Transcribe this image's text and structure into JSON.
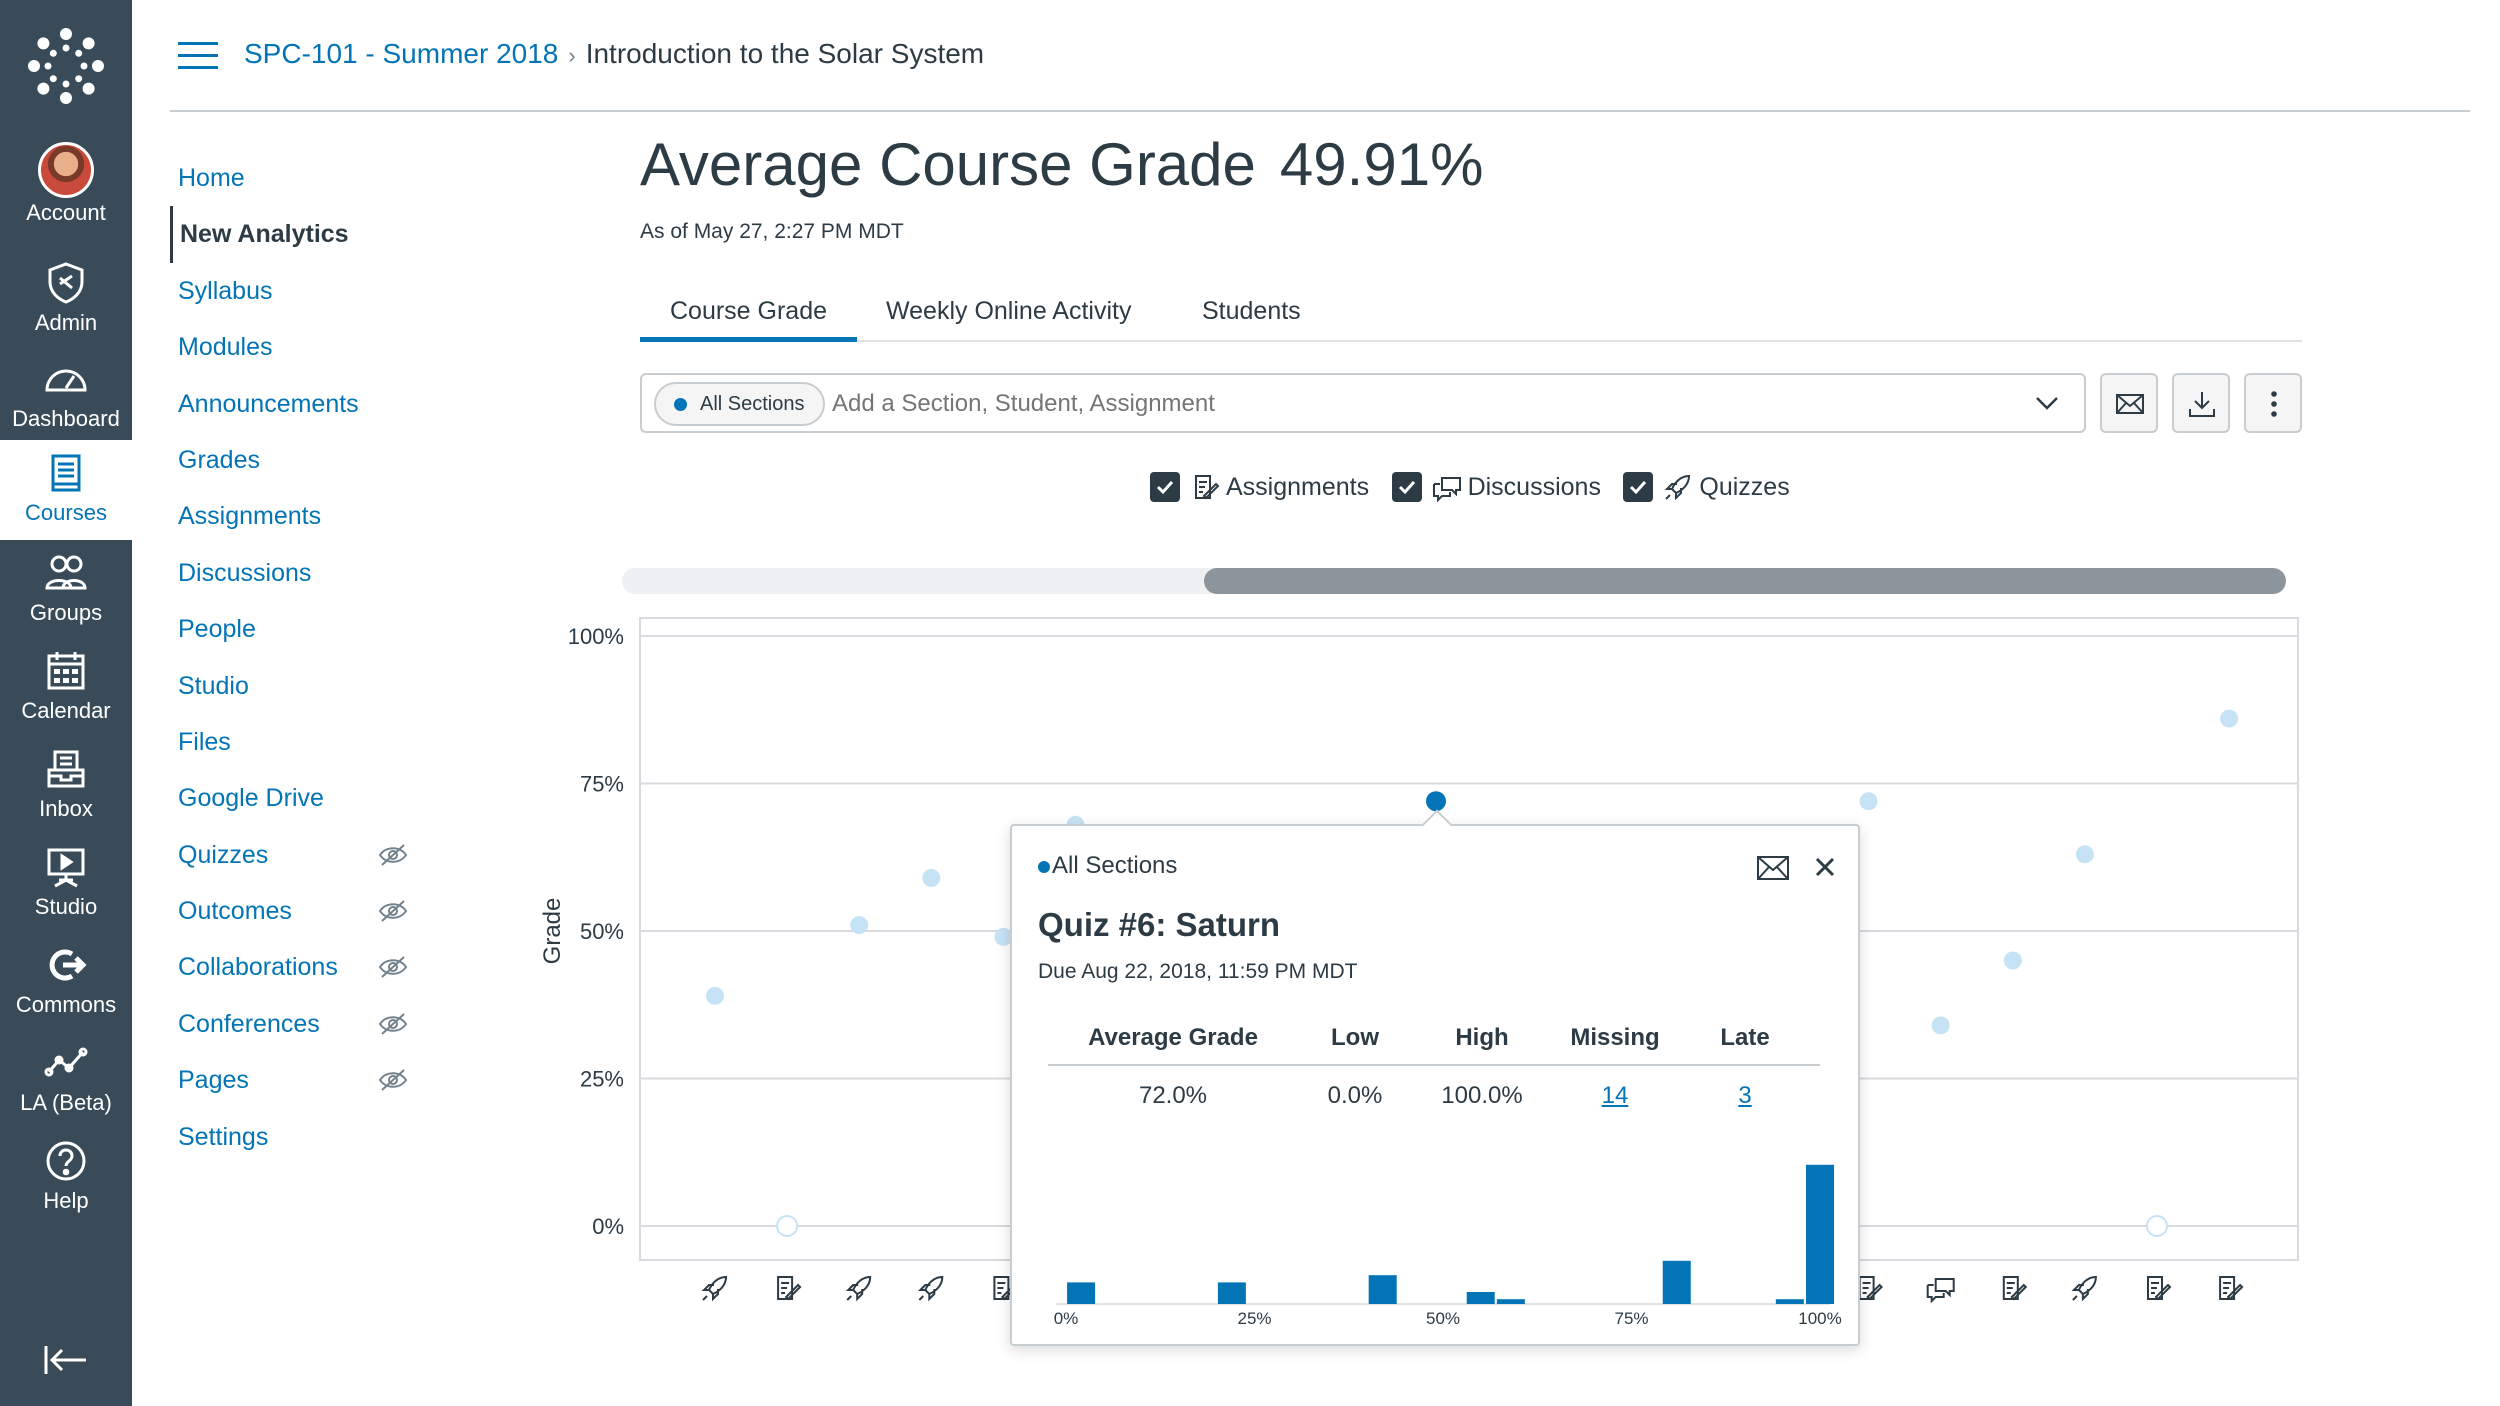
{
  "global_nav": {
    "items": [
      {
        "label": "Account",
        "icon": "avatar"
      },
      {
        "label": "Admin",
        "icon": "shield-icon"
      },
      {
        "label": "Dashboard",
        "icon": "speedometer-icon"
      },
      {
        "label": "Courses",
        "icon": "book-icon",
        "active": true
      },
      {
        "label": "Groups",
        "icon": "people-icon"
      },
      {
        "label": "Calendar",
        "icon": "calendar-icon"
      },
      {
        "label": "Inbox",
        "icon": "inbox-icon"
      },
      {
        "label": "Studio",
        "icon": "studio-icon"
      },
      {
        "label": "Commons",
        "icon": "commons-icon"
      },
      {
        "label": "LA (Beta)",
        "icon": "analytics-icon"
      },
      {
        "label": "Help",
        "icon": "help-icon"
      }
    ]
  },
  "breadcrumb": {
    "course": "SPC-101 - Summer 2018",
    "current": "Introduction to the Solar System"
  },
  "course_nav": {
    "items": [
      {
        "label": "Home"
      },
      {
        "label": "New Analytics",
        "active": true
      },
      {
        "label": "Syllabus"
      },
      {
        "label": "Modules"
      },
      {
        "label": "Announcements"
      },
      {
        "label": "Grades"
      },
      {
        "label": "Assignments"
      },
      {
        "label": "Discussions"
      },
      {
        "label": "People"
      },
      {
        "label": "Studio"
      },
      {
        "label": "Files"
      },
      {
        "label": "Google Drive"
      },
      {
        "label": "Quizzes",
        "hidden": true
      },
      {
        "label": "Outcomes",
        "hidden": true
      },
      {
        "label": "Collaborations",
        "hidden": true
      },
      {
        "label": "Conferences",
        "hidden": true
      },
      {
        "label": "Pages",
        "hidden": true
      },
      {
        "label": "Settings"
      }
    ]
  },
  "page": {
    "title": "Average Course Grade",
    "grade": "49.91%",
    "as_of": "As of May 27, 2:27 PM MDT"
  },
  "tabs": [
    {
      "label": "Course Grade",
      "active": true
    },
    {
      "label": "Weekly Online Activity"
    },
    {
      "label": "Students"
    }
  ],
  "filter": {
    "tag": "All Sections",
    "placeholder": "Add a Section, Student, Assignment"
  },
  "toggles": [
    {
      "label": "Assignments",
      "checked": true,
      "icon": "assignment-icon"
    },
    {
      "label": "Discussions",
      "checked": true,
      "icon": "discussion-icon"
    },
    {
      "label": "Quizzes",
      "checked": true,
      "icon": "quiz-icon"
    }
  ],
  "colors": {
    "accent": "#0374b5",
    "point_light": "#c6e3f6",
    "nav_bg": "#394b58"
  },
  "chart_data": {
    "type": "scatter",
    "ylabel": "Grade",
    "yticks": [
      "100%",
      "75%",
      "50%",
      "25%",
      "0%"
    ],
    "ylim": [
      0,
      100
    ],
    "x_icons": [
      "quiz",
      "assignment",
      "quiz",
      "quiz",
      "assignment",
      "",
      "",
      "",
      "",
      "",
      "",
      "",
      "",
      "",
      "",
      "",
      "assignment",
      "discussion",
      "assignment",
      "quiz",
      "assignment",
      "assignment"
    ],
    "points": [
      {
        "i": 0,
        "y": 39
      },
      {
        "i": 1,
        "y": 0,
        "hollow": true
      },
      {
        "i": 2,
        "y": 51
      },
      {
        "i": 3,
        "y": 59
      },
      {
        "i": 4,
        "y": 49
      },
      {
        "i": 5,
        "y": 68
      },
      {
        "i": 10,
        "y": 72,
        "selected": true
      },
      {
        "i": 16,
        "y": 72
      },
      {
        "i": 17,
        "y": 34
      },
      {
        "i": 18,
        "y": 45
      },
      {
        "i": 19,
        "y": 63
      },
      {
        "i": 20,
        "y": 0,
        "hollow": true
      },
      {
        "i": 21,
        "y": 86
      }
    ]
  },
  "popover": {
    "section": "All Sections",
    "title": "Quiz #6: Saturn",
    "due": "Due Aug 22, 2018, 11:59 PM MDT",
    "headers": [
      "Average Grade",
      "Low",
      "High",
      "Missing",
      "Late"
    ],
    "values": [
      "72.0%",
      "0.0%",
      "100.0%",
      "14",
      "3"
    ],
    "histogram": {
      "ticks": [
        "0%",
        "25%",
        "50%",
        "75%",
        "100%"
      ],
      "bars": [
        {
          "x": 2,
          "h": 9
        },
        {
          "x": 22,
          "h": 9
        },
        {
          "x": 42,
          "h": 12
        },
        {
          "x": 55,
          "h": 5
        },
        {
          "x": 59,
          "h": 2
        },
        {
          "x": 81,
          "h": 18
        },
        {
          "x": 96,
          "h": 2
        },
        {
          "x": 100,
          "h": 58
        }
      ]
    }
  }
}
